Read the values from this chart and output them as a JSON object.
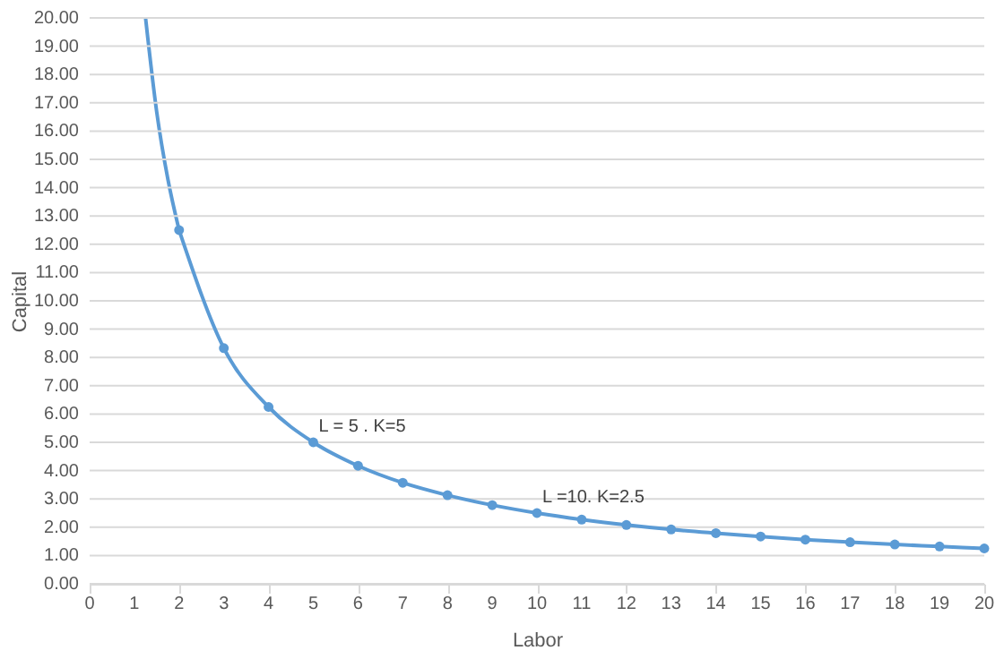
{
  "chart_data": {
    "type": "line",
    "xlabel": "Labor",
    "ylabel": "Capital",
    "xlim": [
      0,
      20
    ],
    "xticks": [
      0,
      1,
      2,
      3,
      4,
      5,
      6,
      7,
      8,
      9,
      10,
      11,
      12,
      13,
      14,
      15,
      16,
      17,
      18,
      19,
      20
    ],
    "ylim": [
      0,
      20
    ],
    "yticks": [
      {
        "value": 0,
        "label": "0.00"
      },
      {
        "value": 1,
        "label": "1.00"
      },
      {
        "value": 2,
        "label": "2.00"
      },
      {
        "value": 3,
        "label": "3.00"
      },
      {
        "value": 4,
        "label": "4.00"
      },
      {
        "value": 5,
        "label": "5.00"
      },
      {
        "value": 6,
        "label": "6.00"
      },
      {
        "value": 7,
        "label": "7.00"
      },
      {
        "value": 8,
        "label": "8.00"
      },
      {
        "value": 9,
        "label": "9.00"
      },
      {
        "value": 10,
        "label": "10.00"
      },
      {
        "value": 11,
        "label": "11.00"
      },
      {
        "value": 12,
        "label": "12.00"
      },
      {
        "value": 13,
        "label": "13.00"
      },
      {
        "value": 14,
        "label": "14.00"
      },
      {
        "value": 15,
        "label": "15.00"
      },
      {
        "value": 16,
        "label": "16.00"
      },
      {
        "value": 17,
        "label": "17.00"
      },
      {
        "value": 18,
        "label": "18.00"
      },
      {
        "value": 19,
        "label": "19.00"
      },
      {
        "value": 20,
        "label": "20.00"
      }
    ],
    "grid": "y",
    "series": [
      {
        "marker": "none",
        "color": "#5b9bd5",
        "x": [
          1.25,
          1.5,
          1.75,
          2
        ],
        "values": [
          20,
          16.67,
          14.29,
          12.5
        ]
      },
      {
        "marker": "circle",
        "color": "#5b9bd5",
        "x": [
          2,
          3,
          4,
          5,
          6,
          7,
          8,
          9,
          10,
          11,
          12,
          13,
          14,
          15,
          16,
          17,
          18,
          19,
          20
        ],
        "values": [
          12.5,
          8.33,
          6.25,
          5,
          4.17,
          3.57,
          3.13,
          2.78,
          2.5,
          2.27,
          2.08,
          1.92,
          1.79,
          1.67,
          1.56,
          1.47,
          1.39,
          1.32,
          1.25
        ]
      }
    ],
    "annotations": [
      {
        "text": "L = 5 . K=5",
        "x": 5,
        "y": 5
      },
      {
        "text": "L =10. K=2.5",
        "x": 10,
        "y": 2.5
      }
    ]
  }
}
